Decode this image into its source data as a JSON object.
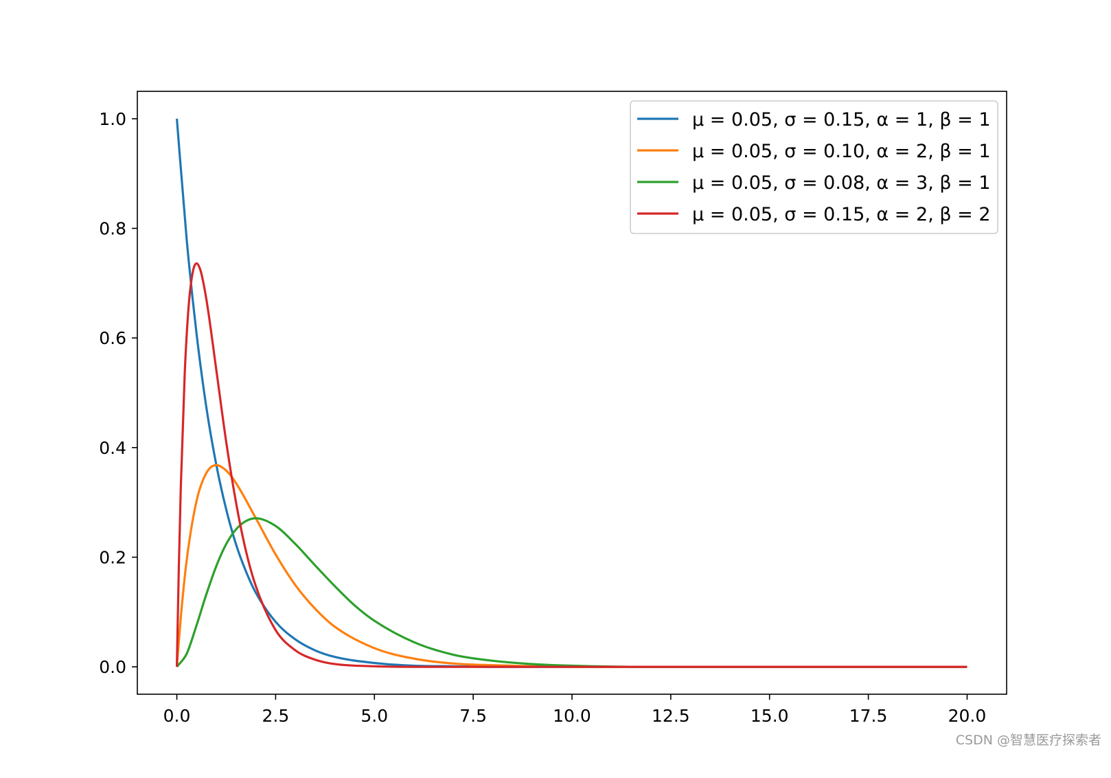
{
  "chart_data": {
    "type": "line",
    "title": "",
    "xlabel": "",
    "ylabel": "",
    "xlim": [
      -1.0,
      21.0
    ],
    "ylim": [
      -0.05,
      1.05
    ],
    "xticks": [
      0.0,
      2.5,
      5.0,
      7.5,
      10.0,
      12.5,
      15.0,
      17.5,
      20.0
    ],
    "xtick_labels": [
      "0.0",
      "2.5",
      "5.0",
      "7.5",
      "10.0",
      "12.5",
      "15.0",
      "17.5",
      "20.0"
    ],
    "yticks": [
      0.0,
      0.2,
      0.4,
      0.6,
      0.8,
      1.0
    ],
    "ytick_labels": [
      "0.0",
      "0.2",
      "0.4",
      "0.6",
      "0.8",
      "1.0"
    ],
    "grid": false,
    "legend_position": "top-right",
    "series": [
      {
        "name": "μ = 0.05,  σ = 0.15,  α = 1,  β = 1",
        "color": "#1f77b4",
        "x": [
          0,
          0.25,
          0.5,
          0.75,
          1,
          1.25,
          1.5,
          1.75,
          2,
          2.5,
          3,
          3.5,
          4,
          5,
          6,
          7,
          8,
          10,
          12,
          15,
          20
        ],
        "y": [
          1.0,
          0.779,
          0.607,
          0.472,
          0.368,
          0.287,
          0.223,
          0.174,
          0.135,
          0.082,
          0.05,
          0.03,
          0.018,
          0.007,
          0.002,
          0.001,
          0.0,
          0.0,
          0.0,
          0.0,
          0.0
        ]
      },
      {
        "name": "μ = 0.05,  σ = 0.10,  α = 2,  β = 1",
        "color": "#ff7f0e",
        "x": [
          0,
          0.1,
          0.25,
          0.5,
          0.75,
          1,
          1.25,
          1.5,
          2,
          2.5,
          3,
          3.5,
          4,
          5,
          6,
          7,
          8,
          10,
          12,
          15,
          20
        ],
        "y": [
          0.0,
          0.09,
          0.195,
          0.303,
          0.354,
          0.368,
          0.358,
          0.335,
          0.271,
          0.205,
          0.149,
          0.106,
          0.073,
          0.034,
          0.015,
          0.006,
          0.003,
          0.0,
          0.0,
          0.0,
          0.0
        ]
      },
      {
        "name": "μ = 0.05,  σ = 0.08,  α = 3,  β = 1",
        "color": "#2ca02c",
        "x": [
          0,
          0.25,
          0.5,
          0.75,
          1,
          1.25,
          1.5,
          1.75,
          2,
          2.5,
          3,
          3.5,
          4,
          4.5,
          5,
          6,
          7,
          8,
          9,
          10,
          12,
          15,
          20
        ],
        "y": [
          0.0,
          0.024,
          0.076,
          0.133,
          0.184,
          0.224,
          0.251,
          0.266,
          0.271,
          0.257,
          0.224,
          0.185,
          0.147,
          0.112,
          0.084,
          0.045,
          0.022,
          0.011,
          0.005,
          0.002,
          0.0,
          0.0,
          0.0
        ]
      },
      {
        "name": "μ = 0.05,  σ = 0.15,  α = 2,  β = 2",
        "color": "#d62728",
        "x": [
          0,
          0.05,
          0.1,
          0.2,
          0.3,
          0.4,
          0.5,
          0.6,
          0.7,
          0.8,
          1,
          1.25,
          1.5,
          1.75,
          2,
          2.5,
          3,
          3.5,
          4,
          5,
          6,
          8,
          10,
          15,
          20
        ],
        "y": [
          0.0,
          0.181,
          0.327,
          0.536,
          0.659,
          0.719,
          0.736,
          0.723,
          0.69,
          0.646,
          0.541,
          0.41,
          0.299,
          0.211,
          0.147,
          0.067,
          0.03,
          0.013,
          0.005,
          0.001,
          0.0,
          0.0,
          0.0,
          0.0,
          0.0
        ]
      }
    ]
  },
  "watermark": "CSDN @智慧医疗探索者"
}
